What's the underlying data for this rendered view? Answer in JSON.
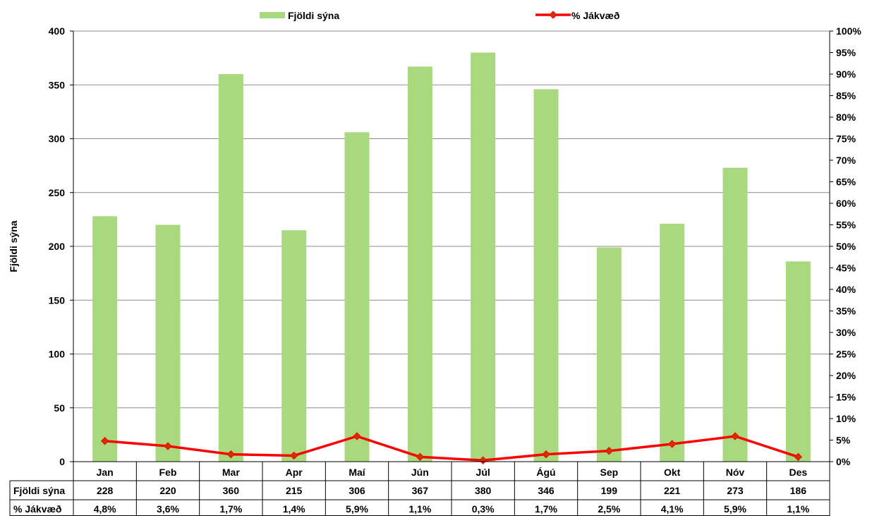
{
  "chart_data": {
    "type": "bar",
    "categories": [
      "Jan",
      "Feb",
      "Mar",
      "Apr",
      "Maí",
      "Jún",
      "Júl",
      "Ágú",
      "Sep",
      "Okt",
      "Nóv",
      "Des"
    ],
    "series": [
      {
        "name": "Fjöldi sýna",
        "type": "bar",
        "axis": "left",
        "color": "#a9d97e",
        "values": [
          228,
          220,
          360,
          215,
          306,
          367,
          380,
          346,
          199,
          221,
          273,
          186
        ],
        "labels": [
          "228",
          "220",
          "360",
          "215",
          "306",
          "367",
          "380",
          "346",
          "199",
          "221",
          "273",
          "186"
        ]
      },
      {
        "name": "% Jákvæð",
        "type": "line",
        "axis": "right",
        "color": "#ff0000",
        "marker_color": "#cc3300",
        "values": [
          4.8,
          3.6,
          1.7,
          1.4,
          5.9,
          1.1,
          0.3,
          1.7,
          2.5,
          4.1,
          5.9,
          1.1
        ],
        "labels": [
          "4,8%",
          "3,6%",
          "1,7%",
          "1,4%",
          "5,9%",
          "1,1%",
          "0,3%",
          "1,7%",
          "2,5%",
          "4,1%",
          "5,9%",
          "1,1%"
        ]
      }
    ],
    "ylabel": "Fjöldi sýna",
    "ylim": [
      0,
      400
    ],
    "yticks": [
      "0",
      "50",
      "100",
      "150",
      "200",
      "250",
      "300",
      "350",
      "400"
    ],
    "y2lim": [
      0,
      100
    ],
    "y2ticks": [
      "0%",
      "5%",
      "10%",
      "15%",
      "20%",
      "25%",
      "30%",
      "35%",
      "40%",
      "45%",
      "50%",
      "55%",
      "60%",
      "65%",
      "70%",
      "75%",
      "80%",
      "85%",
      "90%",
      "95%",
      "100%"
    ],
    "grid": true,
    "legend_position": "top",
    "data_table": true
  }
}
